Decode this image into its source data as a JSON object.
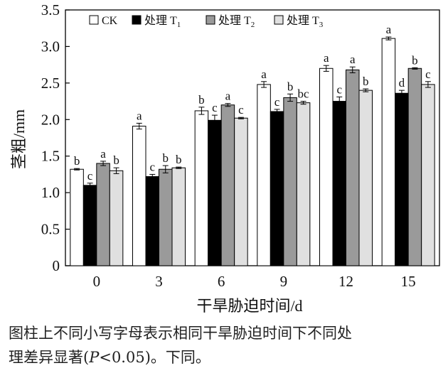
{
  "chart_data": {
    "type": "bar",
    "categories": [
      "0",
      "3",
      "6",
      "9",
      "12",
      "15"
    ],
    "xlabel": "干旱胁迫时间/d",
    "ylabel": "茎粗/mm",
    "ylim": [
      0,
      3.5
    ],
    "yticks": [
      "0",
      "0.5",
      "1.0",
      "1.5",
      "2.0",
      "2.5",
      "3.0",
      "3.5"
    ],
    "grid": false,
    "legend_position": "top",
    "series": [
      {
        "name": "CK",
        "legend_label": "CK",
        "legend_sub": "",
        "color": "#ffffff",
        "values": [
          1.32,
          1.91,
          2.12,
          2.48,
          2.7,
          3.11
        ],
        "errors": [
          0.01,
          0.04,
          0.05,
          0.04,
          0.04,
          0.02
        ],
        "letters": [
          "b",
          "a",
          "b",
          "a",
          "a",
          "a"
        ]
      },
      {
        "name": "处理T1",
        "legend_label": "处理 T",
        "legend_sub": "1",
        "color": "#000000",
        "values": [
          1.1,
          1.22,
          1.99,
          2.11,
          2.25,
          2.36
        ],
        "errors": [
          0.03,
          0.03,
          0.07,
          0.03,
          0.06,
          0.04
        ],
        "letters": [
          "c",
          "c",
          "c",
          "c",
          "c",
          "d"
        ]
      },
      {
        "name": "处理T2",
        "legend_label": "处理 T",
        "legend_sub": "2",
        "color": "#9a9a9a",
        "values": [
          1.4,
          1.32,
          2.2,
          2.3,
          2.68,
          2.7
        ],
        "errors": [
          0.03,
          0.05,
          0.02,
          0.05,
          0.04,
          0.01
        ],
        "letters": [
          "a",
          "b",
          "a",
          "b",
          "a",
          "b"
        ]
      },
      {
        "name": "处理T3",
        "legend_label": "处理 T",
        "legend_sub": "3",
        "color": "#e0e0e0",
        "values": [
          1.3,
          1.34,
          2.02,
          2.23,
          2.4,
          2.48
        ],
        "errors": [
          0.04,
          0.01,
          0.01,
          0.02,
          0.02,
          0.04
        ],
        "letters": [
          "b",
          "b",
          "c",
          "bc",
          "b",
          "c"
        ]
      }
    ]
  },
  "caption": {
    "line1": "图柱上不同小写字母表示相同干旱胁迫时间下不同处",
    "line2_before": "理差异显著(",
    "line2_p": "P",
    "line2_after": "<0.05)。下同。"
  }
}
